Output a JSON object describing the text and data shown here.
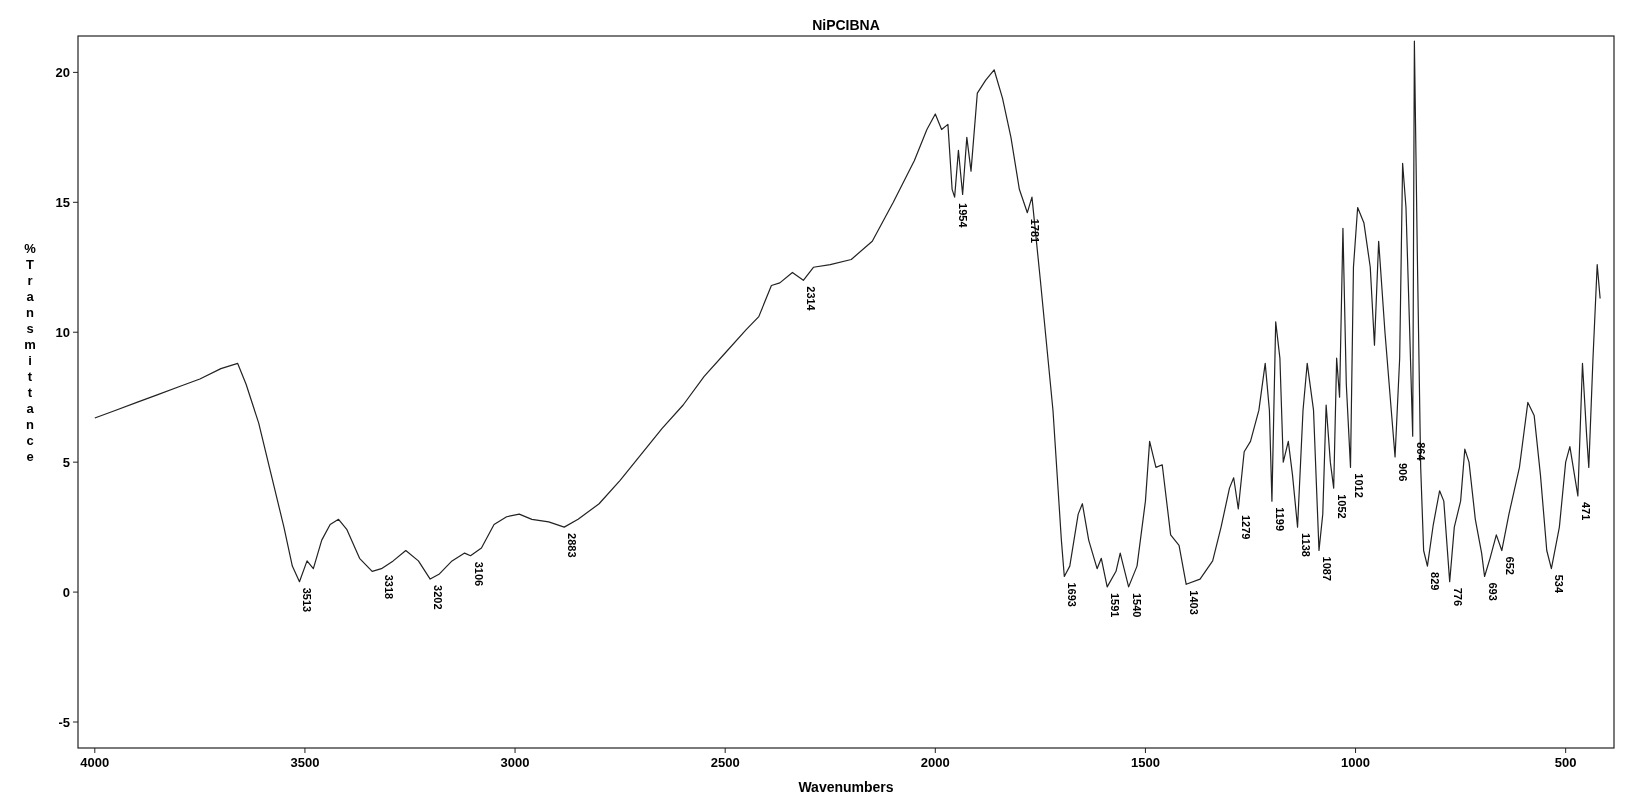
{
  "chart_data": {
    "type": "line",
    "title": "NiPCIBNA",
    "xlabel": "Wavenumbers",
    "ylabel": "%Transmittance",
    "xlim": [
      4040,
      385
    ],
    "ylim": [
      -6,
      21.4
    ],
    "xticks": [
      4000,
      3500,
      3000,
      2500,
      2000,
      1500,
      1000,
      500
    ],
    "yticks": [
      -5,
      0,
      5,
      10,
      15,
      20
    ],
    "grid": false,
    "marker": "none",
    "line_style": "solid",
    "series": [
      {
        "color": "#222222",
        "x": [
          4000,
          3950,
          3900,
          3850,
          3800,
          3750,
          3700,
          3660,
          3640,
          3610,
          3580,
          3550,
          3530,
          3513,
          3495,
          3480,
          3460,
          3440,
          3420,
          3400,
          3370,
          3340,
          3318,
          3290,
          3260,
          3230,
          3202,
          3180,
          3150,
          3120,
          3106,
          3080,
          3050,
          3020,
          2990,
          2960,
          2920,
          2883,
          2850,
          2800,
          2750,
          2700,
          2650,
          2600,
          2550,
          2500,
          2450,
          2420,
          2390,
          2370,
          2340,
          2314,
          2290,
          2250,
          2200,
          2150,
          2100,
          2050,
          2020,
          2000,
          1985,
          1970,
          1960,
          1954,
          1945,
          1935,
          1925,
          1915,
          1900,
          1880,
          1860,
          1840,
          1820,
          1800,
          1781,
          1770,
          1750,
          1720,
          1700,
          1693,
          1680,
          1660,
          1650,
          1635,
          1615,
          1605,
          1591,
          1570,
          1560,
          1540,
          1520,
          1500,
          1490,
          1475,
          1460,
          1440,
          1420,
          1403,
          1370,
          1340,
          1320,
          1300,
          1290,
          1279,
          1265,
          1250,
          1230,
          1215,
          1205,
          1199,
          1190,
          1180,
          1172,
          1160,
          1150,
          1138,
          1125,
          1115,
          1100,
          1087,
          1078,
          1070,
          1060,
          1052,
          1045,
          1038,
          1030,
          1022,
          1012,
          1005,
          995,
          980,
          965,
          955,
          945,
          930,
          915,
          906,
          895,
          888,
          880,
          872,
          864,
          860,
          853,
          845,
          838,
          829,
          815,
          800,
          790,
          776,
          765,
          750,
          740,
          730,
          715,
          700,
          693,
          680,
          665,
          652,
          635,
          610,
          590,
          575,
          560,
          545,
          534,
          515,
          500,
          490,
          471,
          460,
          450,
          445,
          435,
          425,
          418
        ],
        "values": [
          6.7,
          7.0,
          7.3,
          7.6,
          7.9,
          8.2,
          8.6,
          8.8,
          8.0,
          6.5,
          4.5,
          2.5,
          1.0,
          0.4,
          1.2,
          0.9,
          2.0,
          2.6,
          2.8,
          2.4,
          1.3,
          0.8,
          0.9,
          1.2,
          1.6,
          1.2,
          0.5,
          0.7,
          1.2,
          1.5,
          1.4,
          1.7,
          2.6,
          2.9,
          3.0,
          2.8,
          2.7,
          2.5,
          2.8,
          3.4,
          4.3,
          5.3,
          6.3,
          7.2,
          8.3,
          9.2,
          10.1,
          10.6,
          11.8,
          11.9,
          12.3,
          12.0,
          12.5,
          12.6,
          12.8,
          13.5,
          15.0,
          16.6,
          17.8,
          18.4,
          17.8,
          18.0,
          15.5,
          15.2,
          17.0,
          15.3,
          17.5,
          16.2,
          19.2,
          19.7,
          20.1,
          19.0,
          17.5,
          15.5,
          14.6,
          15.2,
          12.0,
          7.0,
          2.0,
          0.6,
          1.0,
          3.0,
          3.4,
          2.0,
          0.9,
          1.3,
          0.2,
          0.8,
          1.5,
          0.2,
          1.0,
          3.5,
          5.8,
          4.8,
          4.9,
          2.2,
          1.8,
          0.3,
          0.5,
          1.2,
          2.5,
          4.0,
          4.4,
          3.2,
          5.4,
          5.8,
          7.0,
          8.8,
          7.0,
          3.5,
          10.4,
          9.0,
          5.0,
          5.8,
          4.5,
          2.5,
          7.0,
          8.8,
          7.0,
          1.6,
          3.0,
          7.2,
          5.0,
          4.0,
          9.0,
          7.5,
          14.0,
          8.0,
          4.8,
          12.5,
          14.8,
          14.2,
          12.5,
          9.5,
          13.5,
          10.0,
          7.0,
          5.2,
          9.0,
          16.5,
          14.8,
          10.5,
          6.0,
          21.2,
          13.0,
          4.8,
          1.6,
          1.0,
          2.6,
          3.9,
          3.5,
          0.4,
          2.5,
          3.5,
          5.5,
          5.0,
          2.8,
          1.5,
          0.6,
          1.3,
          2.2,
          1.6,
          3.0,
          4.8,
          7.3,
          6.8,
          4.5,
          1.6,
          0.9,
          2.5,
          5.0,
          5.6,
          3.7,
          8.8,
          6.0,
          4.8,
          9.0,
          12.6,
          11.3
        ]
      }
    ],
    "annotations": [
      {
        "text": "3513",
        "x": 3513,
        "y": 0.4
      },
      {
        "text": "3318",
        "x": 3318,
        "y": 0.9
      },
      {
        "text": "3202",
        "x": 3202,
        "y": 0.5
      },
      {
        "text": "3106",
        "x": 3106,
        "y": 1.4
      },
      {
        "text": "2883",
        "x": 2883,
        "y": 2.5
      },
      {
        "text": "2314",
        "x": 2314,
        "y": 12.0
      },
      {
        "text": "1954",
        "x": 1954,
        "y": 15.2
      },
      {
        "text": "1781",
        "x": 1781,
        "y": 14.6
      },
      {
        "text": "1693",
        "x": 1693,
        "y": 0.6
      },
      {
        "text": "1591",
        "x": 1591,
        "y": 0.2
      },
      {
        "text": "1540",
        "x": 1540,
        "y": 0.2
      },
      {
        "text": "1403",
        "x": 1403,
        "y": 0.3
      },
      {
        "text": "1279",
        "x": 1279,
        "y": 3.2
      },
      {
        "text": "1199",
        "x": 1199,
        "y": 3.5
      },
      {
        "text": "1138",
        "x": 1138,
        "y": 2.5
      },
      {
        "text": "1087",
        "x": 1087,
        "y": 1.6
      },
      {
        "text": "1052",
        "x": 1052,
        "y": 4.0
      },
      {
        "text": "1012",
        "x": 1012,
        "y": 4.8
      },
      {
        "text": "906",
        "x": 906,
        "y": 5.2
      },
      {
        "text": "864",
        "x": 864,
        "y": 6.0
      },
      {
        "text": "829",
        "x": 829,
        "y": 1.0
      },
      {
        "text": "776",
        "x": 776,
        "y": 0.4
      },
      {
        "text": "693",
        "x": 693,
        "y": 0.6
      },
      {
        "text": "652",
        "x": 652,
        "y": 1.6
      },
      {
        "text": "534",
        "x": 534,
        "y": 0.9
      },
      {
        "text": "471",
        "x": 471,
        "y": 3.7
      }
    ]
  }
}
